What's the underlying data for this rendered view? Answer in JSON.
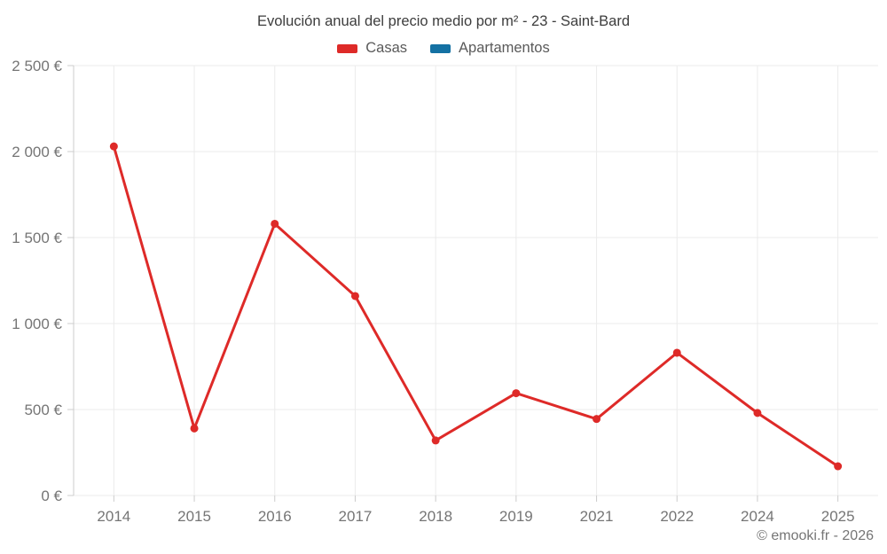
{
  "title": "Evolución anual del precio medio por m² - 23 - Saint-Bard",
  "legend": {
    "items": [
      {
        "id": "casas",
        "label": "Casas",
        "color": "#de2a28"
      },
      {
        "id": "apartamentos",
        "label": "Apartamentos",
        "color": "#1471a3"
      }
    ]
  },
  "footer": "© emooki.fr - 2026",
  "chart_data": {
    "type": "line",
    "title": "Evolución anual del precio medio por m² - 23 - Saint-Bard",
    "categories": [
      "2014",
      "2015",
      "2016",
      "2017",
      "2018",
      "2019",
      "2021",
      "2022",
      "2024",
      "2025"
    ],
    "series": [
      {
        "name": "Casas",
        "color": "#de2a28",
        "values": [
          2030,
          390,
          1580,
          1160,
          320,
          595,
          445,
          830,
          480,
          170
        ]
      },
      {
        "name": "Apartamentos",
        "color": "#1471a3",
        "values": []
      }
    ],
    "xlabel": "",
    "ylabel": "",
    "ylim": [
      0,
      2500
    ],
    "yticks": [
      0,
      500,
      1000,
      1500,
      2000,
      2500
    ],
    "ytick_labels": [
      "0 €",
      "500 €",
      "1 000 €",
      "1 500 €",
      "2 000 €",
      "2 500 €"
    ],
    "currency": "€",
    "grid": true,
    "legend_position": "top"
  }
}
